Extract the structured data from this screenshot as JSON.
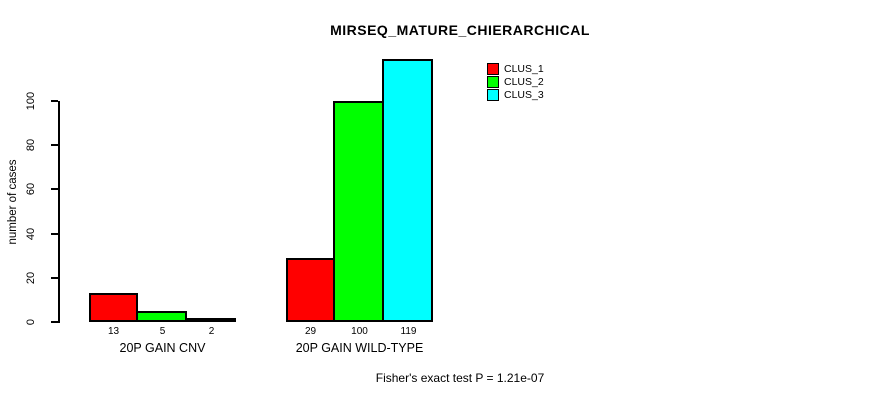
{
  "title": "MIRSEQ_MATURE_CHIERARCHICAL",
  "footer": {
    "text": "Fisher's exact test P = 1.21e-07"
  },
  "chart_data": {
    "type": "bar",
    "title": "MIRSEQ_MATURE_CHIERARCHICAL",
    "xlabel": "",
    "ylabel": "number of cases",
    "categories": [
      "20P GAIN CNV",
      "20P GAIN WILD-TYPE"
    ],
    "series": [
      {
        "name": "CLUS_1",
        "color": "#FF0000",
        "values": [
          13,
          29
        ]
      },
      {
        "name": "CLUS_2",
        "color": "#00FF00",
        "values": [
          5,
          100
        ]
      },
      {
        "name": "CLUS_3",
        "color": "#00FFFF",
        "values": [
          2,
          119
        ]
      }
    ],
    "bar_value_labels": [
      [
        "13",
        "5",
        "2"
      ],
      [
        "29",
        "100",
        "119"
      ]
    ],
    "yticks": [
      0,
      20,
      40,
      60,
      80,
      100
    ],
    "ylim": [
      0,
      100
    ],
    "grid": false,
    "legend_position": "top-right",
    "legend_entries": [
      "CLUS_1",
      "CLUS_2",
      "CLUS_3"
    ],
    "annotation": "Fisher's exact test P = 1.21e-07"
  }
}
